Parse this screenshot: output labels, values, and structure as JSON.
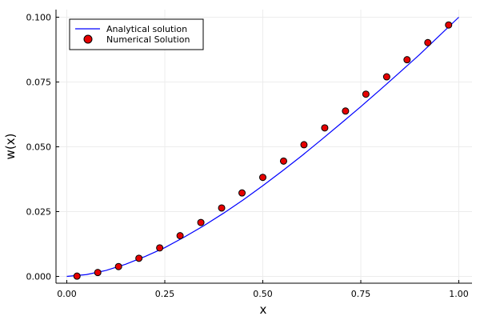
{
  "chart_data": {
    "type": "line",
    "title": "",
    "xlabel": "x",
    "ylabel": "w(x)",
    "xlim": [
      0.0,
      1.0
    ],
    "ylim": [
      0.0,
      0.1
    ],
    "grid": true,
    "legend_position": "top-left",
    "x_ticks": [
      "0.00",
      "0.25",
      "0.50",
      "0.75",
      "1.00"
    ],
    "y_ticks": [
      "0.000",
      "0.025",
      "0.050",
      "0.075",
      "0.100"
    ],
    "series": [
      {
        "name": "Analytical solution",
        "kind": "line",
        "color": "#0000ff",
        "x": [
          0.0,
          0.05,
          0.1,
          0.15,
          0.2,
          0.25,
          0.3,
          0.35,
          0.4,
          0.45,
          0.5,
          0.55,
          0.6,
          0.65,
          0.7,
          0.75,
          0.8,
          0.85,
          0.9,
          0.95,
          1.0
        ],
        "y": [
          0.0,
          0.0007,
          0.0023,
          0.0047,
          0.0077,
          0.0111,
          0.0152,
          0.0196,
          0.0244,
          0.0295,
          0.035,
          0.0407,
          0.0466,
          0.0528,
          0.0591,
          0.0655,
          0.0721,
          0.0788,
          0.0856,
          0.0928,
          0.1
        ]
      },
      {
        "name": "Numerical Solution",
        "kind": "scatter",
        "color": "#e60000",
        "x": [
          0.026,
          0.079,
          0.132,
          0.184,
          0.237,
          0.289,
          0.342,
          0.395,
          0.447,
          0.5,
          0.553,
          0.605,
          0.658,
          0.711,
          0.763,
          0.816,
          0.868,
          0.921,
          0.974
        ],
        "y": [
          0.0001,
          0.0015,
          0.0038,
          0.007,
          0.011,
          0.0157,
          0.0208,
          0.0264,
          0.0322,
          0.0382,
          0.0445,
          0.0508,
          0.0573,
          0.0638,
          0.0703,
          0.077,
          0.0836,
          0.0902,
          0.097
        ]
      }
    ]
  }
}
